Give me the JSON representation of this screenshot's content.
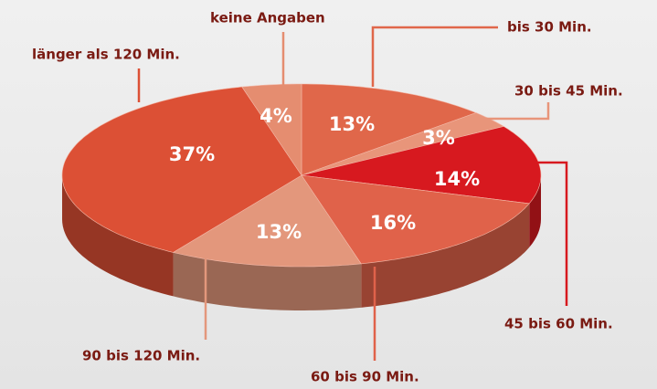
{
  "chart_data": {
    "type": "pie",
    "categories": [
      "bis 30 Min.",
      "30 bis 45 Min.",
      "45 bis 60 Min.",
      "60 bis 90 Min.",
      "90 bis 120 Min.",
      "länger als 120 Min.",
      "keine Angaben"
    ],
    "values": [
      13,
      3,
      14,
      16,
      13,
      37,
      4
    ],
    "value_labels": [
      "13%",
      "3%",
      "14%",
      "16%",
      "13%",
      "37%",
      "4%"
    ],
    "colors": [
      "#e0674a",
      "#e8957a",
      "#d7191f",
      "#e0624a",
      "#e3977c",
      "#dc5035",
      "#e58d70"
    ]
  }
}
